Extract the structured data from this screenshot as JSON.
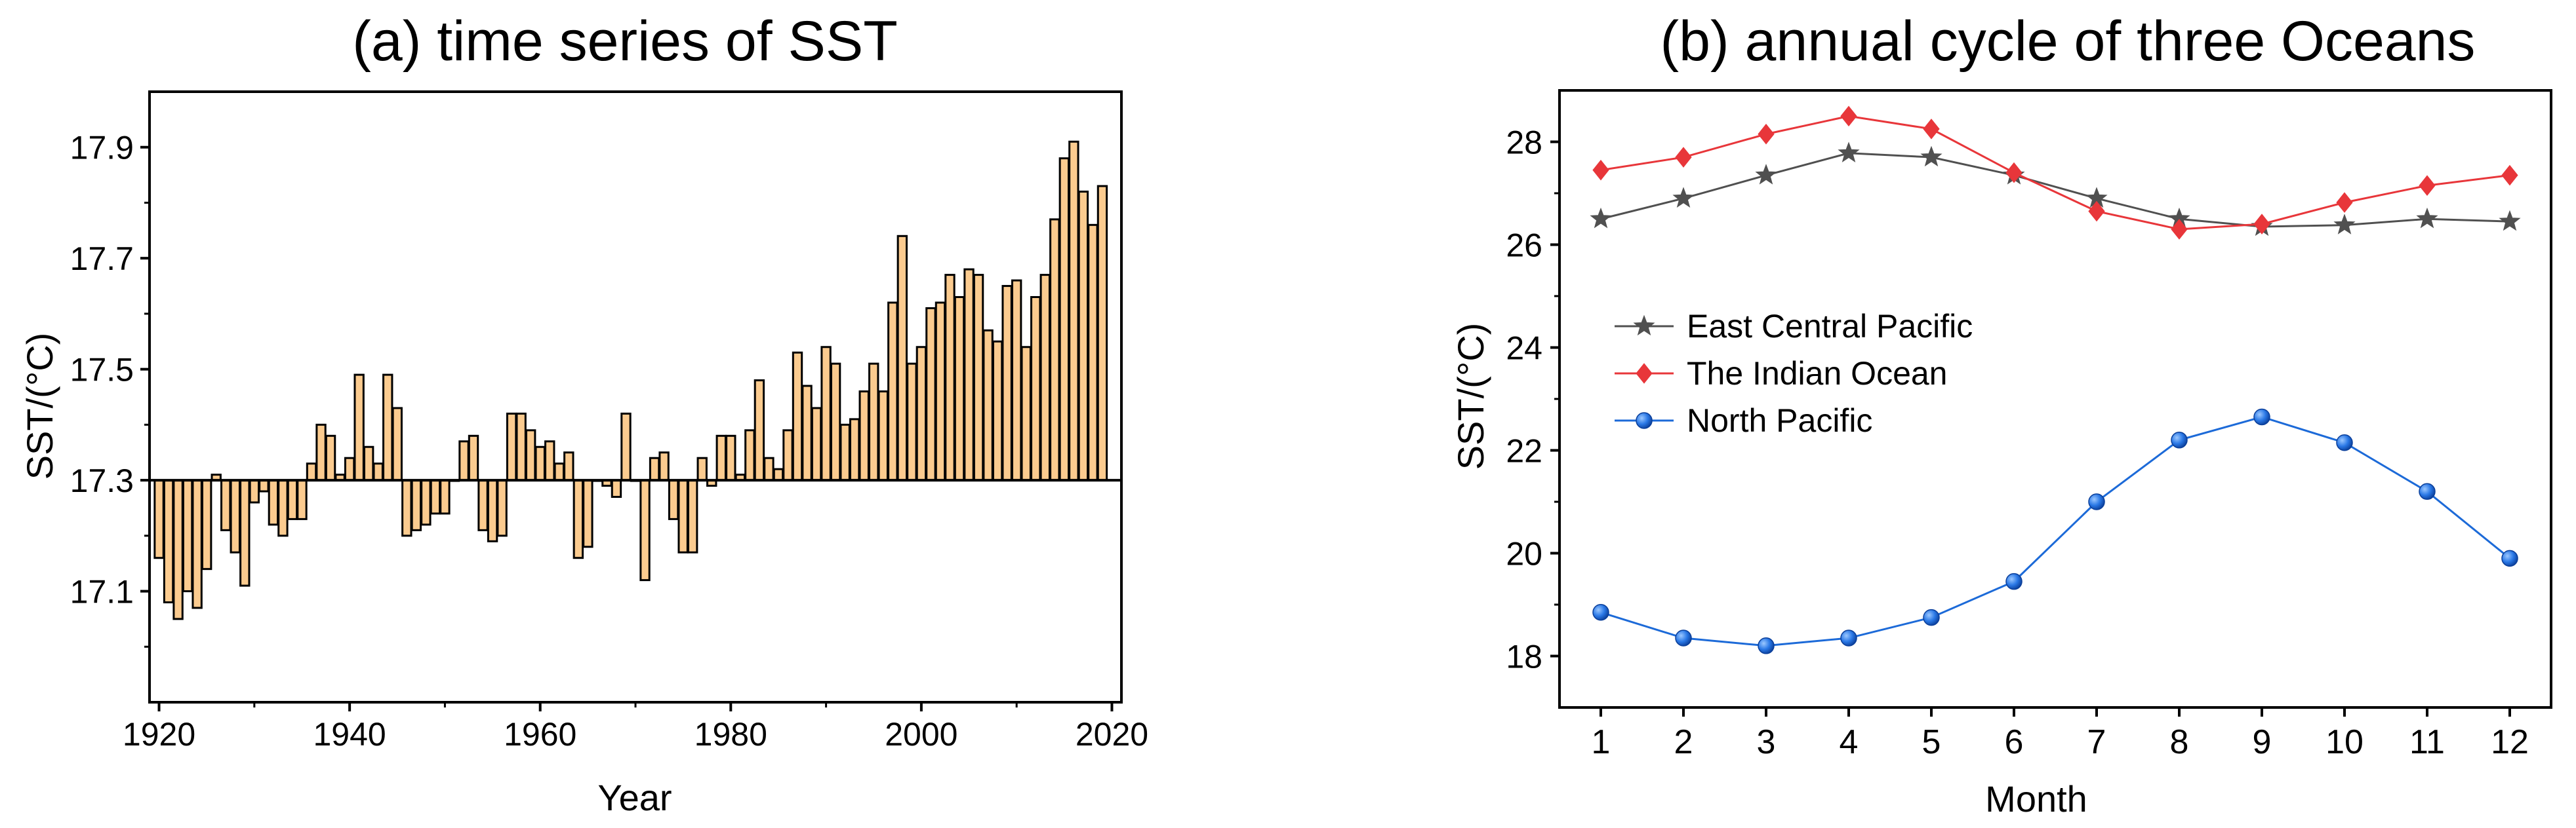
{
  "chart_data": [
    {
      "type": "bar",
      "title": "(a) time series of SST",
      "xlabel": "Year",
      "ylabel": "SST/(°C)",
      "baseline": 17.3,
      "xlim": [
        1919,
        2021
      ],
      "ylim": [
        16.9,
        18.0
      ],
      "xticks": [
        1920,
        1940,
        1960,
        1980,
        2000,
        2020
      ],
      "yticks": [
        17.1,
        17.3,
        17.5,
        17.7,
        17.9
      ],
      "grid": false,
      "bar_color": "#FBCB8F",
      "edge_color": "#000000",
      "x": [
        1920,
        1921,
        1922,
        1923,
        1924,
        1925,
        1926,
        1927,
        1928,
        1929,
        1930,
        1931,
        1932,
        1933,
        1934,
        1935,
        1936,
        1937,
        1938,
        1939,
        1940,
        1941,
        1942,
        1943,
        1944,
        1945,
        1946,
        1947,
        1948,
        1949,
        1950,
        1951,
        1952,
        1953,
        1954,
        1955,
        1956,
        1957,
        1958,
        1959,
        1960,
        1961,
        1962,
        1963,
        1964,
        1965,
        1966,
        1967,
        1968,
        1969,
        1970,
        1971,
        1972,
        1973,
        1974,
        1975,
        1976,
        1977,
        1978,
        1979,
        1980,
        1981,
        1982,
        1983,
        1984,
        1985,
        1986,
        1987,
        1988,
        1989,
        1990,
        1991,
        1992,
        1993,
        1994,
        1995,
        1996,
        1997,
        1998,
        1999,
        2000,
        2001,
        2002,
        2003,
        2004,
        2005,
        2006,
        2007,
        2008,
        2009,
        2010,
        2011,
        2012,
        2013,
        2014,
        2015,
        2016,
        2017,
        2018,
        2019
      ],
      "values": [
        17.16,
        17.08,
        17.05,
        17.1,
        17.07,
        17.14,
        17.31,
        17.21,
        17.17,
        17.11,
        17.26,
        17.28,
        17.22,
        17.2,
        17.23,
        17.23,
        17.33,
        17.4,
        17.38,
        17.31,
        17.34,
        17.49,
        17.36,
        17.33,
        17.49,
        17.43,
        17.2,
        17.21,
        17.22,
        17.24,
        17.24,
        17.3,
        17.37,
        17.38,
        17.21,
        17.19,
        17.2,
        17.42,
        17.42,
        17.39,
        17.36,
        17.37,
        17.33,
        17.35,
        17.16,
        17.18,
        17.3,
        17.29,
        17.27,
        17.42,
        17.3,
        17.12,
        17.34,
        17.35,
        17.23,
        17.17,
        17.17,
        17.34,
        17.29,
        17.38,
        17.38,
        17.31,
        17.39,
        17.48,
        17.34,
        17.32,
        17.39,
        17.53,
        17.47,
        17.43,
        17.54,
        17.51,
        17.4,
        17.41,
        17.46,
        17.51,
        17.46,
        17.62,
        17.74,
        17.51,
        17.54,
        17.61,
        17.62,
        17.67,
        17.63,
        17.68,
        17.67,
        17.57,
        17.55,
        17.65,
        17.66,
        17.54,
        17.63,
        17.67,
        17.77,
        17.88,
        17.91,
        17.82,
        17.76,
        17.83
      ]
    },
    {
      "type": "line",
      "title": "(b) annual cycle of three Oceans",
      "xlabel": "Month",
      "ylabel": "SST/(°C)",
      "xlim": [
        0.5,
        12.5
      ],
      "ylim": [
        17.0,
        29.0
      ],
      "xticks": [
        1,
        2,
        3,
        4,
        5,
        6,
        7,
        8,
        9,
        10,
        11,
        12
      ],
      "yticks": [
        18,
        20,
        22,
        24,
        26,
        28
      ],
      "grid": false,
      "legend_position": "center-left",
      "x": [
        1,
        2,
        3,
        4,
        5,
        6,
        7,
        8,
        9,
        10,
        11,
        12
      ],
      "series": [
        {
          "name": "East Central Pacific",
          "color": "#505050",
          "marker": "star",
          "values": [
            26.5,
            26.9,
            27.35,
            27.78,
            27.7,
            27.35,
            26.9,
            26.5,
            26.35,
            26.38,
            26.5,
            26.45
          ]
        },
        {
          "name": "The Indian Ocean",
          "color": "#E8363A",
          "marker": "diamond",
          "values": [
            27.45,
            27.7,
            28.15,
            28.5,
            28.25,
            27.4,
            26.65,
            26.3,
            26.4,
            26.82,
            27.15,
            27.35
          ]
        },
        {
          "name": "North Pacific",
          "color": "#1C6AD8",
          "marker": "sphere",
          "values": [
            18.85,
            18.35,
            18.2,
            18.35,
            18.75,
            19.45,
            21.0,
            22.2,
            22.65,
            22.15,
            21.2,
            19.9
          ]
        }
      ]
    }
  ]
}
